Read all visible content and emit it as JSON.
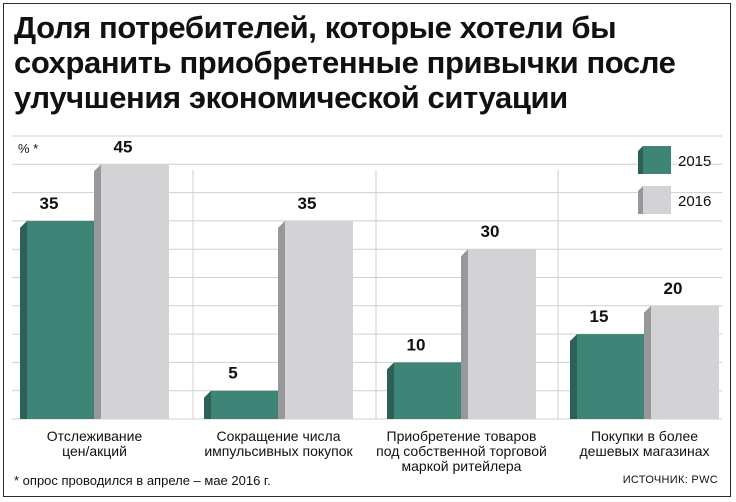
{
  "title": "Доля потребителей, которые хотели бы сохранить приобретенные привычки после улучшения экономической ситуации",
  "footnote": "* опрос проводился в апреле – мае 2016 г.",
  "source": "ИСТОЧНИК: PWC",
  "colors": {
    "series_2015": "#3f8577",
    "series_2016": "#d3d3d6",
    "grid": "#cfcfcf",
    "background": "#ffffff"
  },
  "chart_data": {
    "type": "bar",
    "ylabel": "% *",
    "ylim": [
      0,
      50
    ],
    "grid": true,
    "legend_position": "top-right",
    "categories": [
      [
        "Отслеживание",
        "цен/акций"
      ],
      [
        "Сокращение числа",
        "импульсивных покупок"
      ],
      [
        "Приобретение товаров",
        "под собственной торговой",
        "маркой ритейлера"
      ],
      [
        "Покупки в более",
        "дешевых магазинах"
      ]
    ],
    "series": [
      {
        "name": "2015",
        "values": [
          35,
          5,
          10,
          15
        ]
      },
      {
        "name": "2016",
        "values": [
          45,
          35,
          30,
          20
        ]
      }
    ]
  }
}
